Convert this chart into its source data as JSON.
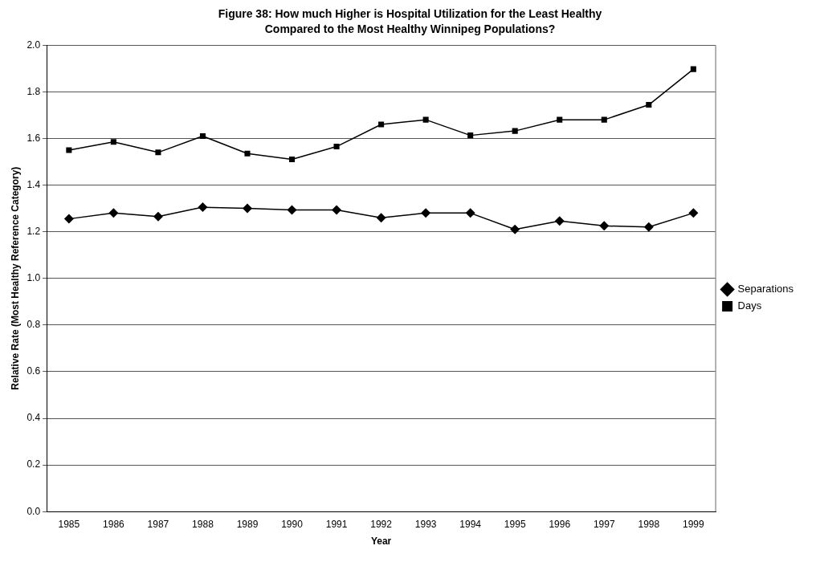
{
  "chart_data": {
    "type": "line",
    "title": "Figure 38: How much Higher is Hospital Utilization for the Least Healthy Compared to the Most Healthy Winnipeg Populations?",
    "xlabel": "Year",
    "ylabel": "Relative Rate (Most Healthy Reference Category)",
    "categories": [
      "1985",
      "1986",
      "1987",
      "1988",
      "1989",
      "1990",
      "1991",
      "1992",
      "1993",
      "1994",
      "1995",
      "1996",
      "1997",
      "1998",
      "1999"
    ],
    "series": [
      {
        "name": "Separations",
        "color": "#000000",
        "marker": "diamond",
        "values": [
          1.255,
          1.28,
          1.265,
          1.305,
          1.3,
          1.293,
          1.293,
          1.26,
          1.28,
          1.28,
          1.21,
          1.246,
          1.225,
          1.22,
          1.28
        ]
      },
      {
        "name": "Days",
        "color": "#000000",
        "marker": "square",
        "values": [
          1.55,
          1.585,
          1.54,
          1.61,
          1.535,
          1.51,
          1.565,
          1.66,
          1.68,
          1.613,
          1.632,
          1.68,
          1.68,
          1.744,
          1.897
        ]
      }
    ],
    "ylim": [
      0,
      2
    ],
    "yticks": [
      {
        "value": 0,
        "label": "0.0"
      },
      0.2,
      0.4,
      0.6,
      0.8,
      {
        "value": 1,
        "label": "1.0"
      },
      1.2,
      1.4,
      1.6,
      1.8,
      {
        "value": 2,
        "label": "2.0"
      }
    ],
    "grid": "y",
    "legend": "right",
    "line_style": "solid"
  }
}
